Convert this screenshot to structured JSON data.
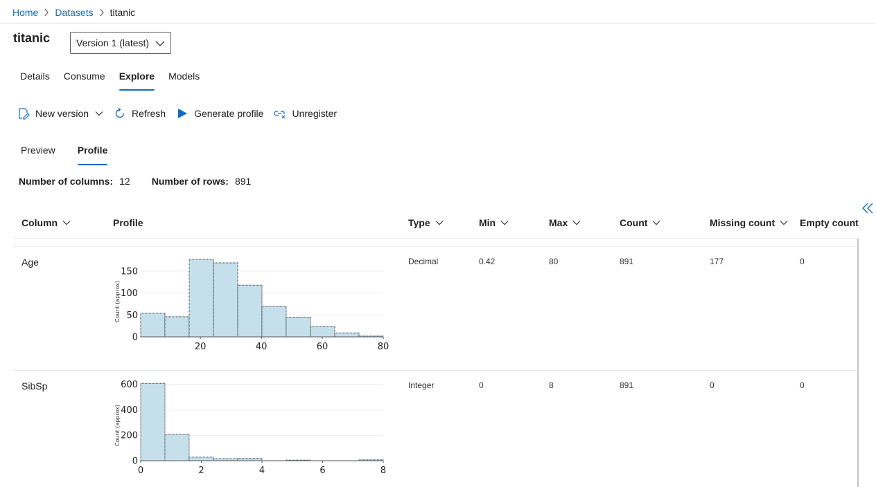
{
  "breadcrumb": {
    "home": "Home",
    "datasets": "Datasets",
    "current": "titanic"
  },
  "dataset": {
    "title": "titanic",
    "version": "Version 1 (latest)"
  },
  "tabs": [
    {
      "label": "Details",
      "active": false
    },
    {
      "label": "Consume",
      "active": false
    },
    {
      "label": "Explore",
      "active": true
    },
    {
      "label": "Models",
      "active": false
    }
  ],
  "toolbar": {
    "new_version": "New version",
    "refresh": "Refresh",
    "generate_profile": "Generate profile",
    "unregister": "Unregister"
  },
  "subtabs": [
    {
      "label": "Preview",
      "active": false
    },
    {
      "label": "Profile",
      "active": true
    }
  ],
  "summary": {
    "columns_label": "Number of columns:",
    "columns_value": "12",
    "rows_label": "Number of rows:",
    "rows_value": "891"
  },
  "table": {
    "headers": {
      "column": "Column",
      "profile": "Profile",
      "type": "Type",
      "min": "Min",
      "max": "Max",
      "count": "Count",
      "missing": "Missing count",
      "empty": "Empty count"
    },
    "rows": [
      {
        "column": "Age",
        "type": "Decimal",
        "min": "0.42",
        "max": "80",
        "count": "891",
        "missing": "177",
        "empty": "0"
      },
      {
        "column": "SibSp",
        "type": "Integer",
        "min": "0",
        "max": "8",
        "count": "891",
        "missing": "0",
        "empty": "0"
      }
    ]
  },
  "colors": {
    "accent": "#0f6cbd",
    "bar_fill": "#c5dfeb",
    "bar_stroke": "#3a4750"
  },
  "chart_data": [
    {
      "type": "bar",
      "title": "",
      "xlabel": "",
      "ylabel": "Count (approx)",
      "bin_edges": [
        0.42,
        8.38,
        16.34,
        24.29,
        32.25,
        40.21,
        48.17,
        56.13,
        64.08,
        72.04,
        80
      ],
      "values": [
        54,
        46,
        177,
        169,
        118,
        70,
        45,
        24,
        9,
        2
      ],
      "xlim": [
        0.42,
        80
      ],
      "ylim": [
        0,
        180
      ],
      "x_ticks": [
        20,
        40,
        60,
        80
      ],
      "y_ticks": [
        0,
        50,
        100,
        150
      ],
      "grid": true,
      "legend": "none"
    },
    {
      "type": "bar",
      "title": "",
      "xlabel": "",
      "ylabel": "Count (approx)",
      "bin_edges": [
        0,
        0.8,
        1.6,
        2.4,
        3.2,
        4.0,
        4.8,
        5.6,
        6.4,
        7.2,
        8.0
      ],
      "values": [
        608,
        209,
        28,
        16,
        18,
        0,
        5,
        0,
        0,
        7
      ],
      "xlim": [
        0,
        8
      ],
      "ylim": [
        0,
        620
      ],
      "x_ticks": [
        0,
        2,
        4,
        6,
        8
      ],
      "y_ticks": [
        0,
        200,
        400,
        600
      ],
      "grid": true,
      "legend": "none"
    }
  ]
}
